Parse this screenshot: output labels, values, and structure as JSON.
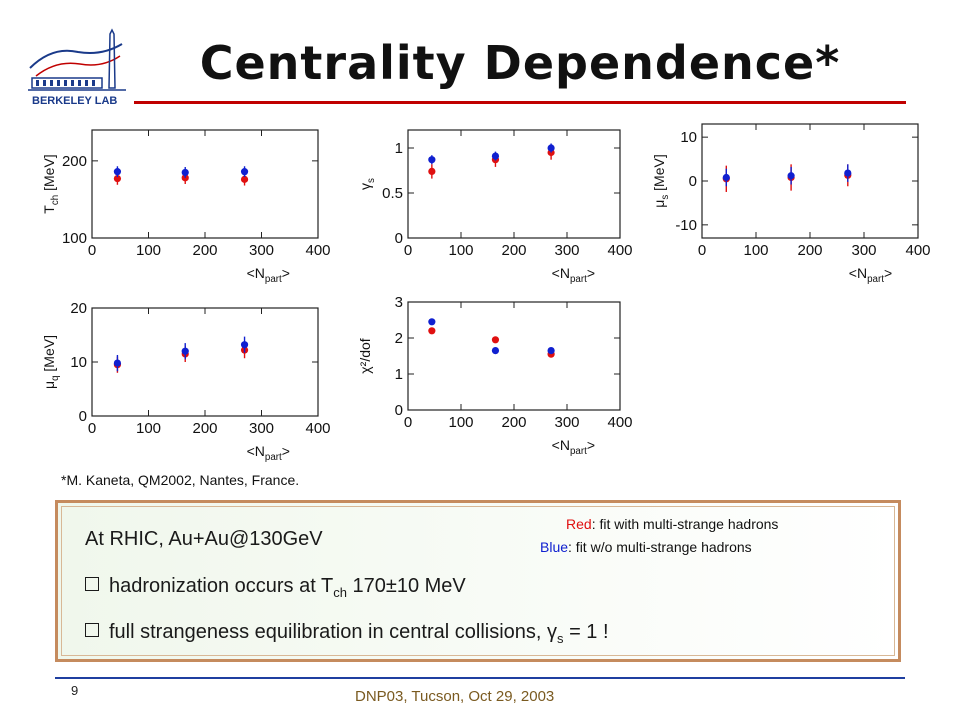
{
  "slide": {
    "title": "Centrality Dependence*",
    "logo_text": "BERKELEY LAB",
    "citation": "*M. Kaneta, QM2002, Nantes, France.",
    "page_number": "9",
    "footer": "DNP03, Tucson, Oct 29, 2003"
  },
  "colors": {
    "accent_rule": "#c00000",
    "footer_rule": "#1f3fa0",
    "red_series": "#e01010",
    "blue_series": "#1020d0"
  },
  "summary": {
    "heading": "At RHIC, Au+Au@130GeV",
    "bullet1": {
      "pre": "hadronization occurs at T",
      "sub": "ch",
      "post": " 170±10 MeV"
    },
    "bullet2": {
      "pre": "full strangeness equilibration in central collisions, γ",
      "sub": "s",
      "post": " = 1 !"
    },
    "legend_red": {
      "key": "Red",
      "text": ": fit with multi-strange hadrons"
    },
    "legend_blue": {
      "key": "Blue",
      "text": ": fit w/o multi-strange hadrons"
    }
  },
  "chart_data": [
    {
      "type": "scatter",
      "ylabel": "T_ch [MeV]",
      "xlabel": "<N_part>",
      "xlim": [
        0,
        400
      ],
      "ylim": [
        100,
        240
      ],
      "xticks": [
        0,
        100,
        200,
        300,
        400
      ],
      "yticks": [
        100,
        200
      ],
      "series": [
        {
          "name": "Red",
          "x": [
            45,
            165,
            270
          ],
          "y": [
            177,
            178,
            176
          ],
          "err": [
            8,
            8,
            8
          ]
        },
        {
          "name": "Blue",
          "x": [
            45,
            165,
            270
          ],
          "y": [
            186,
            185,
            186
          ],
          "err": [
            7,
            7,
            7
          ]
        }
      ]
    },
    {
      "type": "scatter",
      "ylabel": "γ_s",
      "xlabel": "<N_part>",
      "xlim": [
        0,
        400
      ],
      "ylim": [
        0,
        1.2
      ],
      "xticks": [
        0,
        100,
        200,
        300,
        400
      ],
      "yticks": [
        0,
        0.5,
        1
      ],
      "series": [
        {
          "name": "Red",
          "x": [
            45,
            165,
            270
          ],
          "y": [
            0.74,
            0.87,
            0.95
          ],
          "err": [
            0.08,
            0.08,
            0.08
          ]
        },
        {
          "name": "Blue",
          "x": [
            45,
            165,
            270
          ],
          "y": [
            0.87,
            0.91,
            1.0
          ],
          "err": [
            0.05,
            0.05,
            0.05
          ]
        }
      ]
    },
    {
      "type": "scatter",
      "ylabel": "μ_s [MeV]",
      "xlabel": "<N_part>",
      "xlim": [
        0,
        400
      ],
      "ylim": [
        -13,
        13
      ],
      "xticks": [
        0,
        100,
        200,
        300,
        400
      ],
      "yticks": [
        -10,
        0,
        10
      ],
      "series": [
        {
          "name": "Red",
          "x": [
            45,
            165,
            270
          ],
          "y": [
            0.5,
            0.8,
            1.3
          ],
          "err": [
            3,
            3,
            2.5
          ]
        },
        {
          "name": "Blue",
          "x": [
            45,
            165,
            270
          ],
          "y": [
            0.8,
            1.2,
            1.8
          ],
          "err": [
            2,
            2,
            2
          ]
        }
      ]
    },
    {
      "type": "scatter",
      "ylabel": "μ_q [MeV]",
      "xlabel": "<N_part>",
      "xlim": [
        0,
        400
      ],
      "ylim": [
        0,
        20
      ],
      "xticks": [
        0,
        100,
        200,
        300,
        400
      ],
      "yticks": [
        0,
        10,
        20
      ],
      "series": [
        {
          "name": "Red",
          "x": [
            45,
            165,
            270
          ],
          "y": [
            9.5,
            11.5,
            12.2
          ],
          "err": [
            1.5,
            1.5,
            1.5
          ]
        },
        {
          "name": "Blue",
          "x": [
            45,
            165,
            270
          ],
          "y": [
            9.8,
            12.0,
            13.2
          ],
          "err": [
            1.5,
            1.5,
            1.5
          ]
        }
      ]
    },
    {
      "type": "scatter",
      "ylabel": "χ²/dof",
      "xlabel": "<N_part>",
      "xlim": [
        0,
        400
      ],
      "ylim": [
        0,
        3
      ],
      "xticks": [
        0,
        100,
        200,
        300,
        400
      ],
      "yticks": [
        0,
        1,
        2,
        3
      ],
      "series": [
        {
          "name": "Red",
          "x": [
            45,
            165,
            270
          ],
          "y": [
            2.2,
            1.95,
            1.55
          ],
          "err": [
            0,
            0,
            0
          ]
        },
        {
          "name": "Blue",
          "x": [
            45,
            165,
            270
          ],
          "y": [
            2.45,
            1.65,
            1.65
          ],
          "err": [
            0,
            0,
            0
          ]
        }
      ]
    }
  ]
}
